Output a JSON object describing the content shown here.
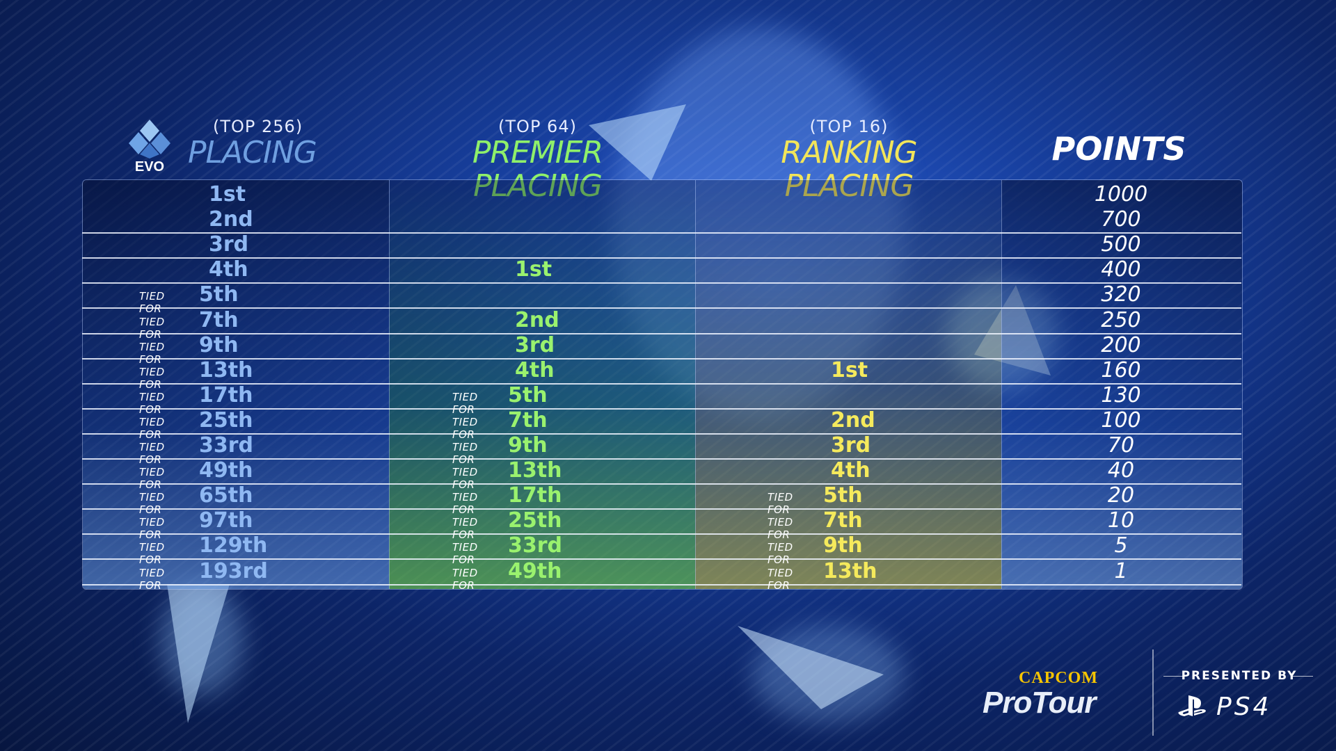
{
  "colors": {
    "placing": "#8fb8f2",
    "premier": "#9af26e",
    "ranking": "#f5ea5c",
    "points": "#ffffff"
  },
  "headers": {
    "placing": {
      "sub": "(TOP 256)",
      "main": "PLACING"
    },
    "premier": {
      "sub": "(TOP 64)",
      "main": "PREMIER PLACING"
    },
    "ranking": {
      "sub": "(TOP 16)",
      "main": "RANKING PLACING"
    },
    "points": {
      "main": "POINTS"
    }
  },
  "logo": {
    "icon": "evo-logo-icon",
    "text": "EVO"
  },
  "tied_label": "TIED FOR",
  "rows": [
    {
      "placing": "1st",
      "placing_tied": false,
      "premier": "",
      "premier_tied": false,
      "ranking": "",
      "ranking_tied": false,
      "points": "1000"
    },
    {
      "placing": "2nd",
      "placing_tied": false,
      "premier": "",
      "premier_tied": false,
      "ranking": "",
      "ranking_tied": false,
      "points": "700"
    },
    {
      "placing": "3rd",
      "placing_tied": false,
      "premier": "",
      "premier_tied": false,
      "ranking": "",
      "ranking_tied": false,
      "points": "500"
    },
    {
      "placing": "4th",
      "placing_tied": false,
      "premier": "1st",
      "premier_tied": false,
      "ranking": "",
      "ranking_tied": false,
      "points": "400"
    },
    {
      "placing": "5th",
      "placing_tied": true,
      "premier": "",
      "premier_tied": false,
      "ranking": "",
      "ranking_tied": false,
      "points": "320"
    },
    {
      "placing": "7th",
      "placing_tied": true,
      "premier": "2nd",
      "premier_tied": false,
      "ranking": "",
      "ranking_tied": false,
      "points": "250"
    },
    {
      "placing": "9th",
      "placing_tied": true,
      "premier": "3rd",
      "premier_tied": false,
      "ranking": "",
      "ranking_tied": false,
      "points": "200"
    },
    {
      "placing": "13th",
      "placing_tied": true,
      "premier": "4th",
      "premier_tied": false,
      "ranking": "1st",
      "ranking_tied": false,
      "points": "160"
    },
    {
      "placing": "17th",
      "placing_tied": true,
      "premier": "5th",
      "premier_tied": true,
      "ranking": "",
      "ranking_tied": false,
      "points": "130"
    },
    {
      "placing": "25th",
      "placing_tied": true,
      "premier": "7th",
      "premier_tied": true,
      "ranking": "2nd",
      "ranking_tied": false,
      "points": "100"
    },
    {
      "placing": "33rd",
      "placing_tied": true,
      "premier": "9th",
      "premier_tied": true,
      "ranking": "3rd",
      "ranking_tied": false,
      "points": "70"
    },
    {
      "placing": "49th",
      "placing_tied": true,
      "premier": "13th",
      "premier_tied": true,
      "ranking": "4th",
      "ranking_tied": false,
      "points": "40"
    },
    {
      "placing": "65th",
      "placing_tied": true,
      "premier": "17th",
      "premier_tied": true,
      "ranking": "5th",
      "ranking_tied": true,
      "points": "20"
    },
    {
      "placing": "97th",
      "placing_tied": true,
      "premier": "25th",
      "premier_tied": true,
      "ranking": "7th",
      "ranking_tied": true,
      "points": "10"
    },
    {
      "placing": "129th",
      "placing_tied": true,
      "premier": "33rd",
      "premier_tied": true,
      "ranking": "9th",
      "ranking_tied": true,
      "points": "5"
    },
    {
      "placing": "193rd",
      "placing_tied": true,
      "premier": "49th",
      "premier_tied": true,
      "ranking": "13th",
      "ranking_tied": true,
      "points": "1"
    }
  ],
  "footer": {
    "capcom": "CAPCOM",
    "protour": "ProTour",
    "presented_by": "PRESENTED BY",
    "ps4": "PS4",
    "ps_icon": "playstation-logo-icon"
  }
}
